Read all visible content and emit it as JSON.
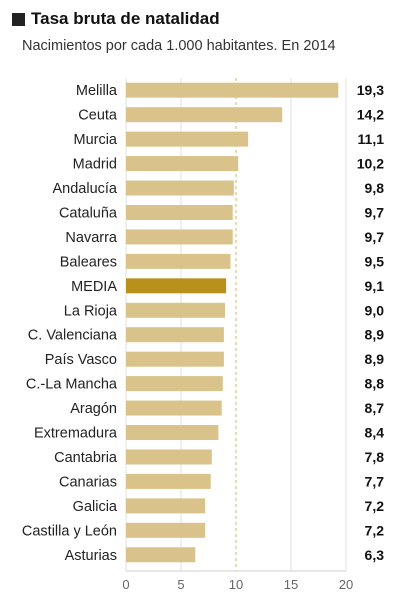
{
  "chart_data": {
    "type": "bar",
    "orientation": "horizontal",
    "title": "Tasa bruta de natalidad",
    "subtitle": "Nacimientos por cada 1.000 habitantes. En 2014",
    "categories": [
      "Melilla",
      "Ceuta",
      "Murcia",
      "Madrid",
      "Andalucía",
      "Cataluña",
      "Navarra",
      "Baleares",
      "MEDIA",
      "La Rioja",
      "C. Valenciana",
      "País Vasco",
      "C.-La Mancha",
      "Aragón",
      "Extremadura",
      "Cantabria",
      "Canarias",
      "Galicia",
      "Castilla y León",
      "Asturias"
    ],
    "values": [
      19.3,
      14.2,
      11.1,
      10.2,
      9.8,
      9.7,
      9.7,
      9.5,
      9.1,
      9.0,
      8.9,
      8.9,
      8.8,
      8.7,
      8.4,
      7.8,
      7.7,
      7.2,
      7.2,
      6.3
    ],
    "value_labels": [
      "19,3",
      "14,2",
      "11,1",
      "10,2",
      "9,8",
      "9,7",
      "9,7",
      "9,5",
      "9,1",
      "9,0",
      "8,9",
      "8,9",
      "8,8",
      "8,7",
      "8,4",
      "7,8",
      "7,7",
      "7,2",
      "7,2",
      "6,3"
    ],
    "highlight_category": "MEDIA",
    "xlim": [
      0,
      20
    ],
    "x_ticks": [
      0,
      5,
      10,
      15,
      20
    ],
    "reference_line": 10,
    "grid": true,
    "colors": {
      "bar": "#d9c38b",
      "highlight": "#b8901c",
      "grid": "#e2e2e2",
      "reference": "#c9b77a"
    }
  }
}
